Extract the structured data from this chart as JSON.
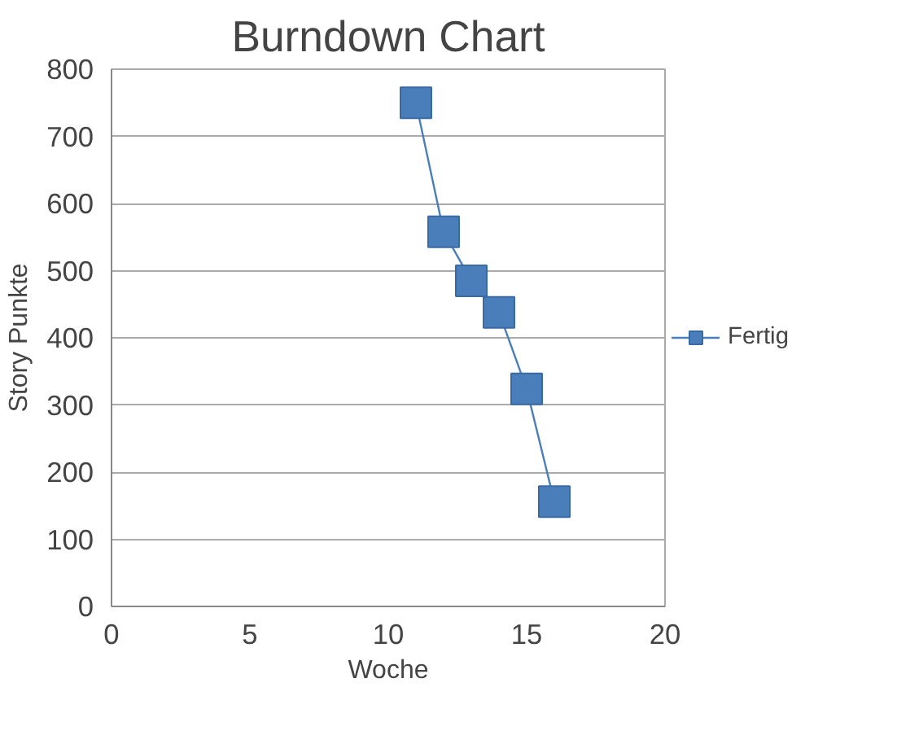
{
  "chart_data": {
    "type": "line",
    "title": "Burndown Chart",
    "xlabel": "Woche",
    "ylabel": "Story Punkte",
    "x": [
      11,
      12,
      13,
      14,
      15,
      16
    ],
    "series": [
      {
        "name": "Fertig",
        "color": "#4a7ebb",
        "values": [
          750,
          558,
          485,
          438,
          324,
          156
        ]
      }
    ],
    "xlim": [
      0,
      20
    ],
    "xticks": [
      0,
      5,
      10,
      15,
      20
    ],
    "ylim": [
      0,
      800
    ],
    "yticks": [
      0,
      100,
      200,
      300,
      400,
      500,
      600,
      700,
      800
    ],
    "grid": "y",
    "legend": "right",
    "marker": "square",
    "line_style": "solid"
  }
}
